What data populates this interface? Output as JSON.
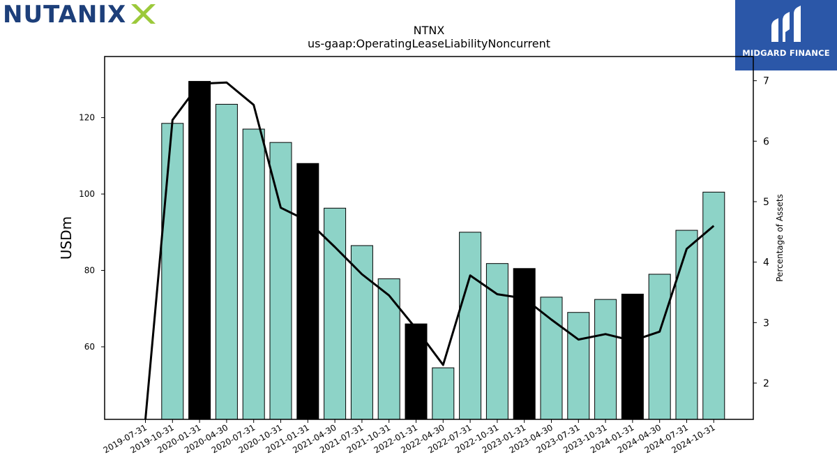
{
  "logos": {
    "left_text": "NUTANIX",
    "right_text": "MIDGARD FINANCE"
  },
  "chart_data": {
    "type": "bar",
    "title": "NTNX",
    "subtitle": "us-gaap:OperatingLeaseLiabilityNoncurrent",
    "ylabel": "USDm",
    "y2label": "Percentage of Assets",
    "categories": [
      "2019-07-31",
      "2019-10-31",
      "2020-01-31",
      "2020-04-30",
      "2020-07-31",
      "2020-10-31",
      "2021-01-31",
      "2021-04-30",
      "2021-07-31",
      "2021-10-31",
      "2022-01-31",
      "2022-04-30",
      "2022-07-31",
      "2022-10-31",
      "2023-01-31",
      "2023-04-30",
      "2023-07-31",
      "2023-10-31",
      "2024-01-31",
      "2024-04-30",
      "2024-07-31",
      "2024-10-31"
    ],
    "ylim": [
      41,
      136
    ],
    "y2lim": [
      1.4,
      7.4
    ],
    "yticks": [
      60,
      80,
      100,
      120
    ],
    "y2ticks": [
      2,
      3,
      4,
      5,
      6,
      7
    ],
    "colors": {
      "bar": "#8dd3c7",
      "highlight": "#000000",
      "line": "#000000"
    },
    "series": [
      {
        "kind": "bar",
        "values": [
          null,
          118.5,
          129.5,
          123.5,
          117.0,
          113.5,
          108.0,
          96.3,
          86.5,
          77.8,
          66.0,
          54.5,
          90.0,
          81.8,
          80.5,
          73.0,
          69.0,
          72.4,
          73.8,
          79.0,
          90.5,
          100.5
        ],
        "highlight": [
          false,
          false,
          true,
          false,
          false,
          false,
          true,
          false,
          false,
          false,
          true,
          false,
          false,
          false,
          true,
          false,
          false,
          false,
          true,
          false,
          false,
          false
        ]
      },
      {
        "kind": "line",
        "axis": "right",
        "values": [
          1.4,
          6.35,
          6.95,
          6.97,
          6.6,
          4.9,
          4.68,
          4.25,
          3.8,
          3.45,
          2.9,
          2.3,
          3.78,
          3.47,
          3.4,
          3.05,
          2.72,
          2.81,
          2.7,
          2.85,
          4.22,
          4.6
        ]
      }
    ]
  }
}
